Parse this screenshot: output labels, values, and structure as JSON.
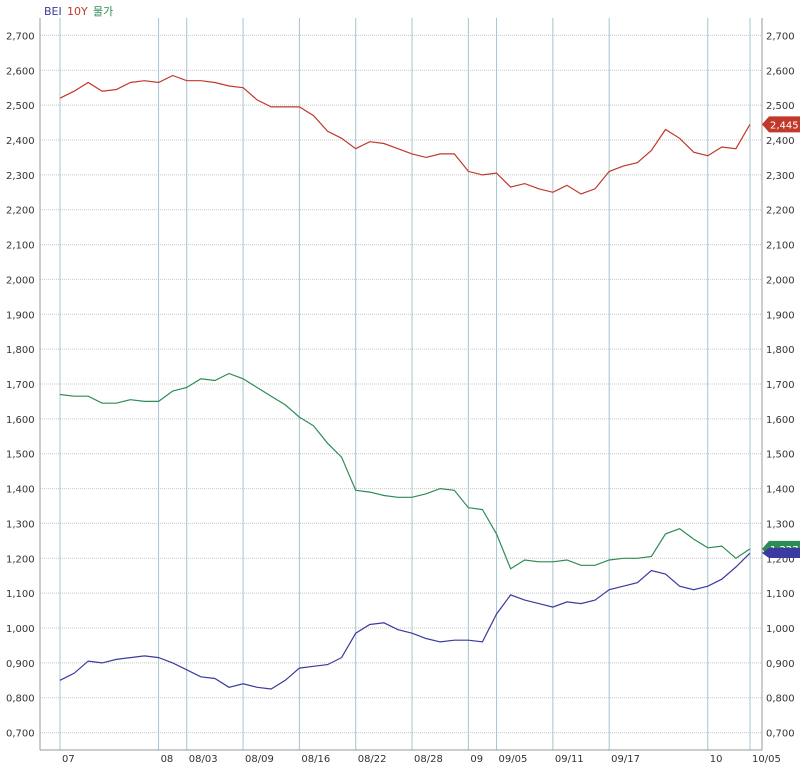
{
  "legend": [
    {
      "label": "BEI",
      "color": "#3a3aa0"
    },
    {
      "label": "10Y",
      "color": "#c0392b"
    },
    {
      "label": "물가",
      "color": "#2e8b57"
    }
  ],
  "chart_data": {
    "type": "line",
    "ylim": [
      650,
      2750
    ],
    "y_ticks": [
      700,
      800,
      900,
      1000,
      1100,
      1200,
      1300,
      1400,
      1500,
      1600,
      1700,
      1800,
      1900,
      2000,
      2100,
      2200,
      2300,
      2400,
      2500,
      2600,
      2700
    ],
    "y_tick_labels": [
      "0,700",
      "0,800",
      "0,900",
      "1,000",
      "1,100",
      "1,200",
      "1,300",
      "1,400",
      "1,500",
      "1,600",
      "1,700",
      "1,800",
      "1,900",
      "2,000",
      "2,100",
      "2,200",
      "2,300",
      "2,400",
      "2,500",
      "2,600",
      "2,700"
    ],
    "x_tick_labels": [
      "07",
      "08",
      "08/03",
      "08/09",
      "08/16",
      "08/22",
      "08/28",
      "09",
      "09/05",
      "09/11",
      "09/17",
      "10",
      "10/05"
    ],
    "x_count": 50,
    "x_tick_index": [
      0,
      7,
      9,
      13,
      17,
      21,
      25,
      29,
      31,
      35,
      39,
      46,
      49
    ],
    "grid": true,
    "series": [
      {
        "key": "10y",
        "color": "#c0392b",
        "last_label": "2,445",
        "values": [
          2520,
          2540,
          2565,
          2540,
          2545,
          2565,
          2570,
          2565,
          2585,
          2570,
          2570,
          2565,
          2555,
          2550,
          2515,
          2495,
          2495,
          2495,
          2470,
          2425,
          2405,
          2375,
          2395,
          2390,
          2375,
          2360,
          2350,
          2360,
          2360,
          2310,
          2300,
          2305,
          2265,
          2275,
          2260,
          2250,
          2270,
          2245,
          2260,
          2310,
          2325,
          2335,
          2370,
          2430,
          2405,
          2365,
          2355,
          2380,
          2375,
          2445
        ]
      },
      {
        "key": "price",
        "color": "#2e8b57",
        "last_label": "1,227",
        "values": [
          1670,
          1665,
          1665,
          1645,
          1645,
          1655,
          1650,
          1650,
          1680,
          1690,
          1715,
          1710,
          1730,
          1715,
          1690,
          1665,
          1640,
          1605,
          1580,
          1530,
          1490,
          1395,
          1390,
          1380,
          1375,
          1375,
          1385,
          1400,
          1395,
          1345,
          1340,
          1270,
          1170,
          1195,
          1190,
          1190,
          1195,
          1180,
          1180,
          1195,
          1200,
          1200,
          1205,
          1270,
          1285,
          1255,
          1230,
          1235,
          1200,
          1227
        ]
      },
      {
        "key": "bei",
        "color": "#3a3aa0",
        "values": [
          850,
          870,
          905,
          900,
          910,
          915,
          920,
          915,
          900,
          880,
          860,
          855,
          830,
          840,
          830,
          825,
          850,
          885,
          890,
          895,
          915,
          985,
          1010,
          1015,
          995,
          985,
          970,
          960,
          965,
          965,
          960,
          1040,
          1095,
          1080,
          1070,
          1060,
          1075,
          1070,
          1080,
          1110,
          1120,
          1130,
          1165,
          1155,
          1120,
          1110,
          1120,
          1140,
          1175,
          1215
        ]
      }
    ]
  }
}
